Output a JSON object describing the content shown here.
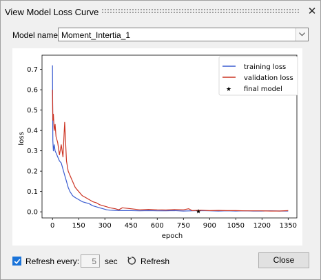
{
  "window": {
    "title": "View Model Loss Curve",
    "close_icon": "close-icon"
  },
  "model": {
    "label": "Model name:",
    "value": "Moment_Intertia_1"
  },
  "footer": {
    "refresh_label": "Refresh every:",
    "refresh_checked": true,
    "interval_value": "5",
    "interval_unit": "sec",
    "refresh_button": "Refresh",
    "close_button": "Close"
  },
  "colors": {
    "training": "#3a5bd0",
    "validation": "#cc3322",
    "accent": "#1a73d9"
  },
  "chart_data": {
    "type": "line",
    "xlabel": "epoch",
    "ylabel": "loss",
    "xlim": [
      -60,
      1400
    ],
    "ylim": [
      -0.03,
      0.77
    ],
    "xticks": [
      "0",
      "150",
      "300",
      "450",
      "600",
      "750",
      "900",
      "1050",
      "1200",
      "1350"
    ],
    "yticks": [
      "0.0",
      "0.1",
      "0.2",
      "0.3",
      "0.4",
      "0.5",
      "0.6",
      "0.7"
    ],
    "legend_position": "top-right",
    "series": [
      {
        "name": "training loss",
        "x": [
          0,
          2,
          5,
          10,
          15,
          20,
          30,
          40,
          50,
          60,
          70,
          80,
          90,
          100,
          115,
          130,
          150,
          170,
          190,
          210,
          230,
          250,
          270,
          290,
          310,
          330,
          360,
          400,
          450,
          500,
          550,
          600,
          650,
          700,
          750,
          800,
          850,
          900,
          950,
          1000,
          1050,
          1100,
          1150,
          1200,
          1250,
          1300,
          1350
        ],
        "y": [
          0.72,
          0.35,
          0.3,
          0.33,
          0.3,
          0.29,
          0.27,
          0.25,
          0.24,
          0.21,
          0.18,
          0.15,
          0.12,
          0.1,
          0.08,
          0.07,
          0.06,
          0.05,
          0.045,
          0.04,
          0.03,
          0.025,
          0.02,
          0.015,
          0.01,
          0.008,
          0.007,
          0.006,
          0.006,
          0.005,
          0.006,
          0.005,
          0.005,
          0.006,
          0.004,
          0.005,
          0.006,
          0.005,
          0.004,
          0.005,
          0.004,
          0.005,
          0.004,
          0.004,
          0.005,
          0.004,
          0.004
        ]
      },
      {
        "name": "validation loss",
        "x": [
          0,
          2,
          5,
          10,
          15,
          20,
          30,
          40,
          50,
          60,
          70,
          80,
          90,
          100,
          115,
          130,
          150,
          170,
          190,
          210,
          230,
          250,
          270,
          290,
          310,
          330,
          360,
          380,
          400,
          450,
          500,
          550,
          600,
          650,
          700,
          750,
          780,
          800,
          850,
          900,
          950,
          1000,
          1050,
          1100,
          1150,
          1200,
          1250,
          1300,
          1350
        ],
        "y": [
          0.6,
          0.45,
          0.48,
          0.4,
          0.43,
          0.37,
          0.34,
          0.28,
          0.33,
          0.27,
          0.44,
          0.25,
          0.2,
          0.18,
          0.15,
          0.12,
          0.1,
          0.08,
          0.07,
          0.06,
          0.05,
          0.045,
          0.035,
          0.03,
          0.025,
          0.02,
          0.015,
          0.01,
          0.02,
          0.015,
          0.01,
          0.012,
          0.01,
          0.009,
          0.011,
          0.01,
          0.015,
          0.006,
          0.008,
          0.006,
          0.007,
          0.006,
          0.006,
          0.005,
          0.005,
          0.005,
          0.004,
          0.004,
          0.006
        ]
      },
      {
        "name": "final model",
        "x": [
          836
        ],
        "y": [
          0.003
        ]
      }
    ]
  }
}
